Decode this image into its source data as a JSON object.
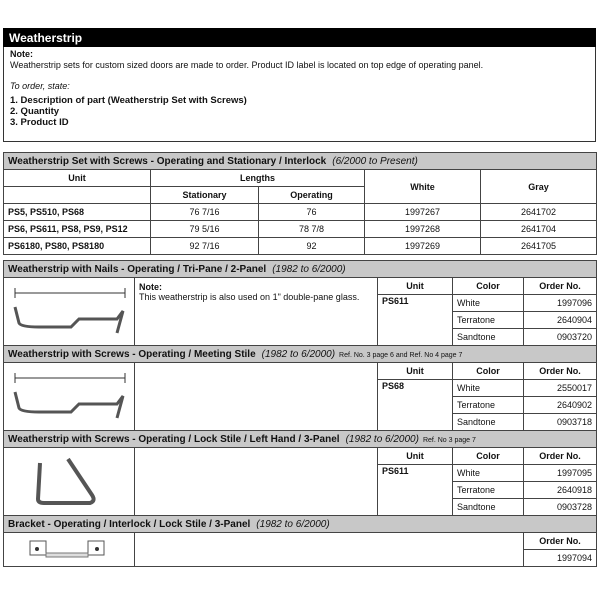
{
  "title": "Weatherstrip",
  "note": {
    "heading": "Note:",
    "text": "Weatherstrip sets for custom sized doors are made to order. Product ID label is located on top edge of operating panel.",
    "order_intro": "To order, state:",
    "items": [
      "1.  Description of part (Weatherstrip Set with Screws)",
      "2.  Quantity",
      "3.  Product ID"
    ]
  },
  "set": {
    "title": "Weatherstrip Set with Screws - Operating and Stationary / Interlock",
    "dates": "(6/2000 to Present)",
    "headers": {
      "unit": "Unit",
      "lengths": "Lengths",
      "stationary": "Stationary",
      "operating": "Operating",
      "white": "White",
      "gray": "Gray"
    },
    "rows": [
      {
        "unit": "PS5, PS510, PS68",
        "stationary": "76 7/16",
        "operating": "76",
        "white": "1997267",
        "gray": "2641702"
      },
      {
        "unit": "PS6, PS611, PS8, PS9, PS12",
        "stationary": "79 5/16",
        "operating": "78 7/8",
        "white": "1997268",
        "gray": "2641704"
      },
      {
        "unit": "PS6180, PS80, PS8180",
        "stationary": "92 7/16",
        "operating": "92",
        "white": "1997269",
        "gray": "2641705"
      }
    ]
  },
  "headers": {
    "unit": "Unit",
    "color": "Color",
    "order": "Order No."
  },
  "sections": [
    {
      "title": "Weatherstrip with Nails - Operating / Tri-Pane / 2-Panel",
      "dates": "(1982 to 6/2000)",
      "ref": "",
      "note_heading": "Note:",
      "note": "This weatherstrip is also used on 1\" double-pane glass.",
      "unit": "PS611",
      "rows": [
        {
          "color": "White",
          "order": "1997096"
        },
        {
          "color": "Terratone",
          "order": "2640904"
        },
        {
          "color": "Sandtone",
          "order": "0903720"
        }
      ]
    },
    {
      "title": "Weatherstrip with Screws - Operating / Meeting Stile",
      "dates": "(1982 to 6/2000)",
      "ref": "Ref. No. 3 page 6 and Ref. No 4 page 7",
      "unit": "PS68",
      "rows": [
        {
          "color": "White",
          "order": "2550017"
        },
        {
          "color": "Terratone",
          "order": "2640902"
        },
        {
          "color": "Sandtone",
          "order": "0903718"
        }
      ]
    },
    {
      "title": "Weatherstrip with Screws - Operating / Lock Stile / Left Hand / 3-Panel",
      "dates": "(1982 to 6/2000)",
      "ref": "Ref. No 3 page 7",
      "unit": "PS611",
      "rows": [
        {
          "color": "White",
          "order": "1997095"
        },
        {
          "color": "Terratone",
          "order": "2640918"
        },
        {
          "color": "Sandtone",
          "order": "0903728"
        }
      ]
    }
  ],
  "bracket": {
    "title": "Bracket - Operating / Interlock / Lock Stile / 3-Panel",
    "dates": "(1982 to 6/2000)",
    "order": "1997094"
  }
}
